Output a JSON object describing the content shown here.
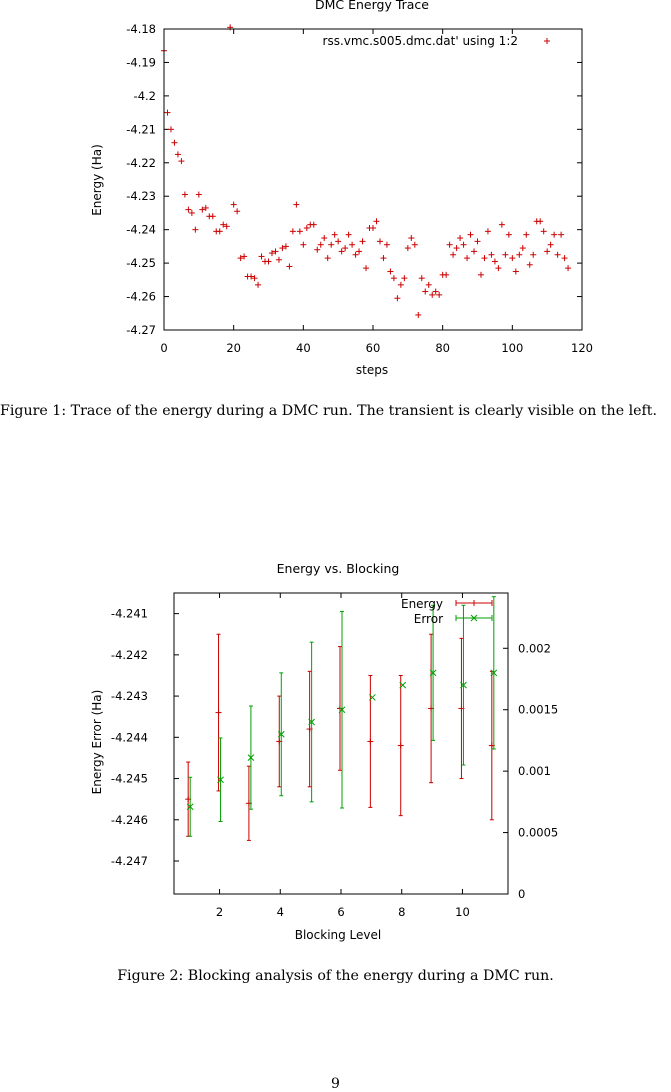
{
  "figure1": {
    "caption": "Figure 1: Trace of the energy during a DMC run. The transient is clearly visible on the left.",
    "chart_data": {
      "type": "scatter",
      "title": "DMC Energy Trace",
      "xlabel": "steps",
      "ylabel": "Energy (Ha)",
      "xlim": [
        0,
        120
      ],
      "ylim": [
        -4.27,
        -4.18
      ],
      "xticks": [
        0,
        20,
        40,
        60,
        80,
        100,
        120
      ],
      "yticks": [
        -4.27,
        -4.26,
        -4.25,
        -4.24,
        -4.23,
        -4.22,
        -4.21,
        -4.2,
        -4.19,
        -4.18
      ],
      "ytick_labels": [
        "-4.27",
        "-4.26",
        "-4.25",
        "-4.24",
        "-4.23",
        "-4.22",
        "-4.21",
        "-4.2",
        "-4.19",
        "-4.18"
      ],
      "grid": false,
      "legend_position": "top-right",
      "series": [
        {
          "name": "rss.vmc.s005.dmc.dat' using 1:2",
          "color": "#cc0000",
          "marker": "+",
          "x": [
            0,
            1,
            2,
            3,
            4,
            5,
            6,
            7,
            8,
            9,
            10,
            11,
            12,
            13,
            14,
            15,
            16,
            17,
            18,
            19,
            20,
            21,
            22,
            23,
            24,
            25,
            26,
            27,
            28,
            29,
            30,
            31,
            32,
            33,
            34,
            35,
            36,
            37,
            38,
            39,
            40,
            41,
            42,
            43,
            44,
            45,
            46,
            47,
            48,
            49,
            50,
            51,
            52,
            53,
            54,
            55,
            56,
            57,
            58,
            59,
            60,
            61,
            62,
            63,
            64,
            65,
            66,
            67,
            68,
            69,
            70,
            71,
            72,
            73,
            74,
            75,
            76,
            77,
            78,
            79,
            80,
            81,
            82,
            83,
            84,
            85,
            86,
            87,
            88,
            89,
            90,
            91,
            92,
            93,
            94,
            95,
            96,
            97,
            98,
            99,
            100,
            101,
            102,
            103,
            104,
            105,
            106,
            107,
            108,
            109,
            110,
            111,
            112,
            113,
            114,
            115,
            116
          ],
          "y": [
            -4.1865,
            -4.205,
            -4.21,
            -4.214,
            -4.2175,
            -4.2195,
            -4.2295,
            -4.234,
            -4.235,
            -4.24,
            -4.2295,
            -4.234,
            -4.2335,
            -4.236,
            -4.236,
            -4.2405,
            -4.2405,
            -4.2385,
            -4.239,
            -4.1795,
            -4.2325,
            -4.2345,
            -4.2485,
            -4.248,
            -4.254,
            -4.254,
            -4.2545,
            -4.2565,
            -4.248,
            -4.2495,
            -4.2495,
            -4.247,
            -4.2465,
            -4.249,
            -4.2455,
            -4.245,
            -4.251,
            -4.2405,
            -4.2325,
            -4.2405,
            -4.2445,
            -4.2395,
            -4.2385,
            -4.2385,
            -4.246,
            -4.2445,
            -4.2425,
            -4.2485,
            -4.2445,
            -4.2415,
            -4.2435,
            -4.2465,
            -4.2455,
            -4.2415,
            -4.2445,
            -4.2475,
            -4.2465,
            -4.2435,
            -4.2515,
            -4.2395,
            -4.2395,
            -4.2375,
            -4.2435,
            -4.2485,
            -4.2445,
            -4.2525,
            -4.2545,
            -4.2605,
            -4.2565,
            -4.2545,
            -4.2455,
            -4.2425,
            -4.2445,
            -4.2655,
            -4.2545,
            -4.2585,
            -4.2565,
            -4.2595,
            -4.2585,
            -4.2595,
            -4.2535,
            -4.2535,
            -4.2445,
            -4.2475,
            -4.2455,
            -4.2425,
            -4.2445,
            -4.2485,
            -4.2415,
            -4.2465,
            -4.2435,
            -4.2535,
            -4.2485,
            -4.2405,
            -4.2475,
            -4.2495,
            -4.2515,
            -4.2385,
            -4.2475,
            -4.2415,
            -4.2485,
            -4.2525,
            -4.2475,
            -4.2455,
            -4.2415,
            -4.2505,
            -4.2475,
            -4.2375,
            -4.2375,
            -4.2405,
            -4.2465,
            -4.2445,
            -4.2415,
            -4.2475,
            -4.2415,
            -4.2485,
            -4.2515
          ]
        }
      ]
    }
  },
  "figure2": {
    "caption": "Figure 2: Blocking analysis of the energy during a DMC run.",
    "chart_data": {
      "type": "scatter",
      "title": "Energy vs. Blocking",
      "xlabel": "Blocking Level",
      "ylabel": "Energy Error (Ha)",
      "xlim": [
        0.5,
        11.5
      ],
      "xticks": [
        2,
        4,
        6,
        8,
        10
      ],
      "ylim": [
        -4.2478,
        -4.2405
      ],
      "yticks": [
        -4.247,
        -4.246,
        -4.245,
        -4.244,
        -4.243,
        -4.242,
        -4.241
      ],
      "ytick_labels": [
        "-4.247",
        "-4.246",
        "-4.245",
        "-4.244",
        "-4.243",
        "-4.242",
        "-4.241"
      ],
      "y2lim": [
        0,
        0.00245
      ],
      "y2ticks": [
        0,
        0.0005,
        0.001,
        0.0015,
        0.002
      ],
      "y2tick_labels": [
        "0",
        "0.0005",
        "0.001",
        "0.0015",
        "0.002"
      ],
      "grid": false,
      "legend_position": "top-right",
      "series": [
        {
          "name": "Energy",
          "axis": "left",
          "color": "#cc0000",
          "marker": "+",
          "x": [
            1,
            2,
            3,
            4,
            5,
            6,
            7,
            8,
            9,
            10,
            11
          ],
          "y": [
            -4.2455,
            -4.2434,
            -4.2456,
            -4.2441,
            -4.2438,
            -4.2433,
            -4.2441,
            -4.2442,
            -4.2433,
            -4.2433,
            -4.2442
          ],
          "err": [
            0.0009,
            0.0019,
            0.0009,
            0.0011,
            0.0014,
            0.0015,
            0.0016,
            0.0017,
            0.0018,
            0.0017,
            0.0018
          ]
        },
        {
          "name": "Error",
          "axis": "right",
          "color": "#00a000",
          "marker": "x",
          "x": [
            1,
            2,
            3,
            4,
            5,
            6,
            7,
            8,
            9,
            10,
            11
          ],
          "y": [
            0.00071,
            0.00093,
            0.00111,
            0.0013,
            0.0014,
            0.0015,
            0.0016,
            0.0017,
            0.0018,
            0.0017,
            0.0018
          ],
          "err": [
            0.00024,
            0.00034,
            0.00042,
            0.0005,
            0.00065,
            0.0008,
            0.0,
            0.0,
            0.00055,
            0.00065,
            0.00062
          ]
        }
      ]
    }
  },
  "page_number": "9"
}
